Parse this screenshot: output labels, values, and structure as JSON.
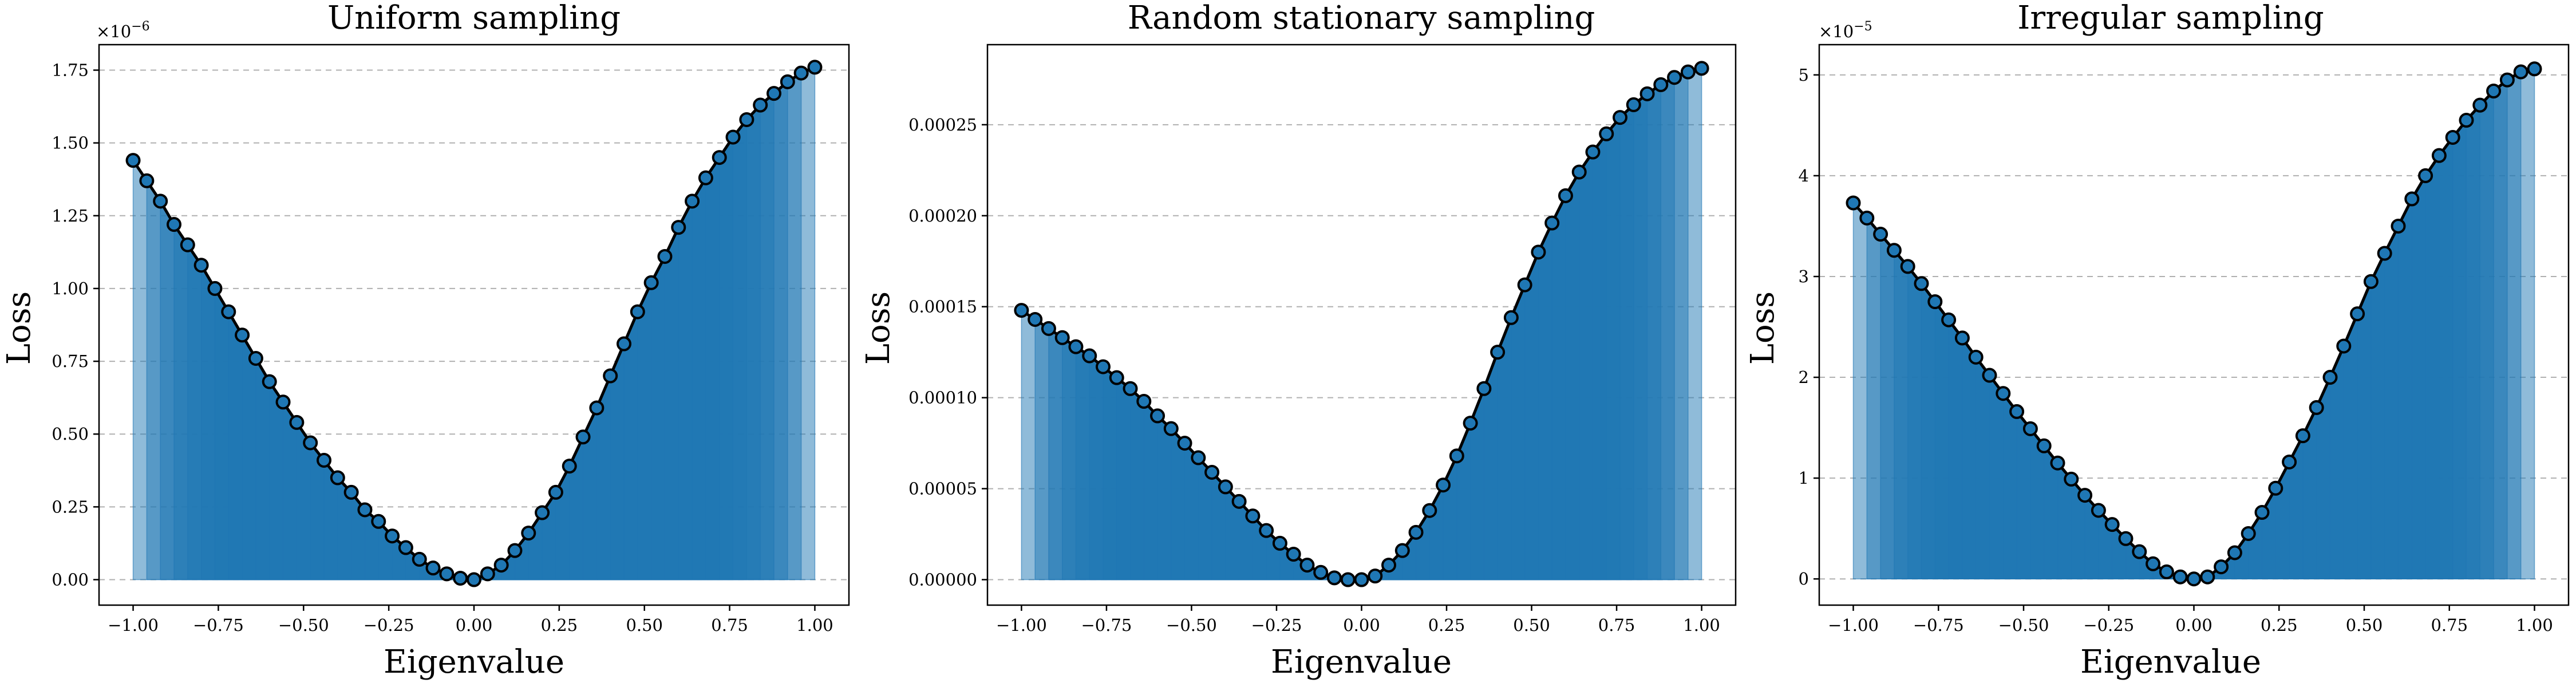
{
  "chart_data": [
    {
      "type": "area",
      "title": "Uniform sampling",
      "xlabel": "Eigenvalue",
      "ylabel": "Loss",
      "y_offset_label": "×10",
      "y_offset_exponent": "−6",
      "xlim": [
        -1.1,
        1.1
      ],
      "ylim": [
        -0.0875,
        1.8375
      ],
      "x_ticks": [
        -1.0,
        -0.75,
        -0.5,
        -0.25,
        0.0,
        0.25,
        0.5,
        0.75,
        1.0
      ],
      "x_tick_labels": [
        "−1.00",
        "−0.75",
        "−0.50",
        "−0.25",
        "0.00",
        "0.25",
        "0.50",
        "0.75",
        "1.00"
      ],
      "y_ticks": [
        0.0,
        0.25,
        0.5,
        0.75,
        1.0,
        1.25,
        1.5,
        1.75
      ],
      "y_tick_labels": [
        "0.00",
        "0.25",
        "0.50",
        "0.75",
        "1.00",
        "1.25",
        "1.50",
        "1.75"
      ],
      "grid": "y-dashed",
      "x": [
        -1.0,
        -0.96,
        -0.92,
        -0.88,
        -0.84,
        -0.8,
        -0.76,
        -0.72,
        -0.68,
        -0.64,
        -0.6,
        -0.56,
        -0.52,
        -0.48,
        -0.44,
        -0.4,
        -0.36,
        -0.32,
        -0.28,
        -0.24,
        -0.2,
        -0.16,
        -0.12,
        -0.08,
        -0.04,
        0.0,
        0.04,
        0.08,
        0.12,
        0.16,
        0.2,
        0.24,
        0.28,
        0.32,
        0.36,
        0.4,
        0.44,
        0.48,
        0.52,
        0.56,
        0.6,
        0.64,
        0.68,
        0.72,
        0.76,
        0.8,
        0.84,
        0.88,
        0.92,
        0.96,
        1.0
      ],
      "y": [
        1.44,
        1.37,
        1.3,
        1.22,
        1.15,
        1.08,
        1.0,
        0.92,
        0.84,
        0.76,
        0.68,
        0.61,
        0.54,
        0.47,
        0.41,
        0.35,
        0.3,
        0.24,
        0.2,
        0.15,
        0.11,
        0.07,
        0.04,
        0.02,
        0.005,
        0.0,
        0.02,
        0.05,
        0.1,
        0.16,
        0.23,
        0.3,
        0.39,
        0.49,
        0.59,
        0.7,
        0.81,
        0.92,
        1.02,
        1.11,
        1.21,
        1.3,
        1.38,
        1.45,
        1.52,
        1.58,
        1.63,
        1.67,
        1.71,
        1.74,
        1.76
      ]
    },
    {
      "type": "area",
      "title": "Random stationary sampling",
      "xlabel": "Eigenvalue",
      "ylabel": "Loss",
      "y_offset_label": "",
      "y_offset_exponent": "",
      "xlim": [
        -1.1,
        1.1
      ],
      "ylim": [
        -1.4e-05,
        0.000294
      ],
      "x_ticks": [
        -1.0,
        -0.75,
        -0.5,
        -0.25,
        0.0,
        0.25,
        0.5,
        0.75,
        1.0
      ],
      "x_tick_labels": [
        "−1.00",
        "−0.75",
        "−0.50",
        "−0.25",
        "0.00",
        "0.25",
        "0.50",
        "0.75",
        "1.00"
      ],
      "y_ticks": [
        0.0,
        5e-05,
        0.0001,
        0.00015,
        0.0002,
        0.00025
      ],
      "y_tick_labels": [
        "0.00000",
        "0.00005",
        "0.00010",
        "0.00015",
        "0.00020",
        "0.00025"
      ],
      "grid": "y-dashed",
      "x": [
        -1.0,
        -0.96,
        -0.92,
        -0.88,
        -0.84,
        -0.8,
        -0.76,
        -0.72,
        -0.68,
        -0.64,
        -0.6,
        -0.56,
        -0.52,
        -0.48,
        -0.44,
        -0.4,
        -0.36,
        -0.32,
        -0.28,
        -0.24,
        -0.2,
        -0.16,
        -0.12,
        -0.08,
        -0.04,
        0.0,
        0.04,
        0.08,
        0.12,
        0.16,
        0.2,
        0.24,
        0.28,
        0.32,
        0.36,
        0.4,
        0.44,
        0.48,
        0.52,
        0.56,
        0.6,
        0.64,
        0.68,
        0.72,
        0.76,
        0.8,
        0.84,
        0.88,
        0.92,
        0.96,
        1.0
      ],
      "y": [
        0.000148,
        0.000143,
        0.000138,
        0.000133,
        0.000128,
        0.000123,
        0.000117,
        0.000111,
        0.000105,
        9.8e-05,
        9e-05,
        8.3e-05,
        7.5e-05,
        6.7e-05,
        5.9e-05,
        5.1e-05,
        4.3e-05,
        3.5e-05,
        2.7e-05,
        2e-05,
        1.4e-05,
        8e-06,
        4e-06,
        1e-06,
        0.0,
        0.0,
        2e-06,
        8e-06,
        1.6e-05,
        2.6e-05,
        3.8e-05,
        5.2e-05,
        6.8e-05,
        8.6e-05,
        0.000105,
        0.000125,
        0.000144,
        0.000162,
        0.00018,
        0.000196,
        0.000211,
        0.000224,
        0.000235,
        0.000245,
        0.000254,
        0.000261,
        0.000267,
        0.000272,
        0.000276,
        0.000279,
        0.000281
      ]
    },
    {
      "type": "area",
      "title": "Irregular sampling",
      "xlabel": "Eigenvalue",
      "ylabel": "Loss",
      "y_offset_label": "×10",
      "y_offset_exponent": "−5",
      "xlim": [
        -1.1,
        1.1
      ],
      "ylim": [
        -0.26,
        5.3
      ],
      "x_ticks": [
        -1.0,
        -0.75,
        -0.5,
        -0.25,
        0.0,
        0.25,
        0.5,
        0.75,
        1.0
      ],
      "x_tick_labels": [
        "−1.00",
        "−0.75",
        "−0.50",
        "−0.25",
        "0.00",
        "0.25",
        "0.50",
        "0.75",
        "1.00"
      ],
      "y_ticks": [
        0,
        1,
        2,
        3,
        4,
        5
      ],
      "y_tick_labels": [
        "0",
        "1",
        "2",
        "3",
        "4",
        "5"
      ],
      "grid": "y-dashed",
      "x": [
        -1.0,
        -0.96,
        -0.92,
        -0.88,
        -0.84,
        -0.8,
        -0.76,
        -0.72,
        -0.68,
        -0.64,
        -0.6,
        -0.56,
        -0.52,
        -0.48,
        -0.44,
        -0.4,
        -0.36,
        -0.32,
        -0.28,
        -0.24,
        -0.2,
        -0.16,
        -0.12,
        -0.08,
        -0.04,
        0.0,
        0.04,
        0.08,
        0.12,
        0.16,
        0.2,
        0.24,
        0.28,
        0.32,
        0.36,
        0.4,
        0.44,
        0.48,
        0.52,
        0.56,
        0.6,
        0.64,
        0.68,
        0.72,
        0.76,
        0.8,
        0.84,
        0.88,
        0.92,
        0.96,
        1.0
      ],
      "y": [
        3.73,
        3.58,
        3.42,
        3.26,
        3.1,
        2.93,
        2.75,
        2.57,
        2.39,
        2.2,
        2.02,
        1.84,
        1.66,
        1.49,
        1.32,
        1.15,
        0.99,
        0.83,
        0.68,
        0.54,
        0.4,
        0.27,
        0.15,
        0.07,
        0.02,
        0.0,
        0.02,
        0.12,
        0.26,
        0.45,
        0.66,
        0.9,
        1.16,
        1.42,
        1.7,
        2.0,
        2.31,
        2.63,
        2.95,
        3.23,
        3.5,
        3.77,
        4.0,
        4.2,
        4.38,
        4.55,
        4.7,
        4.84,
        4.95,
        5.03,
        5.06
      ]
    }
  ],
  "colors": {
    "fill": "#1f77b4",
    "marker": "#1f77b4",
    "line": "#000000",
    "grid": "#b0b0b0"
  }
}
